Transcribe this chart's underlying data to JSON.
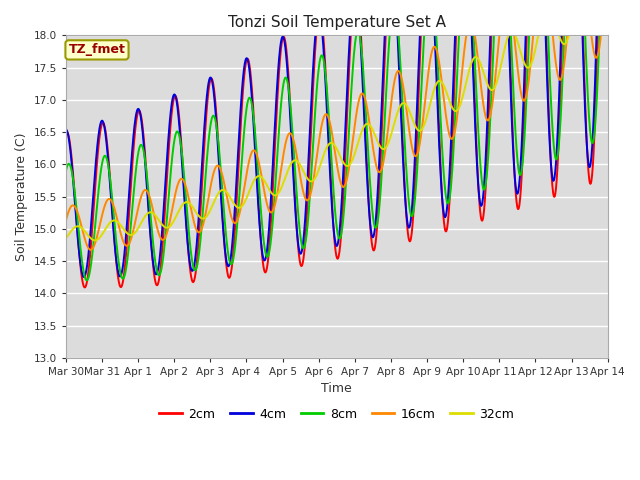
{
  "title": "Tonzi Soil Temperature Set A",
  "xlabel": "Time",
  "ylabel": "Soil Temperature (C)",
  "ylim": [
    13.0,
    18.0
  ],
  "yticks": [
    13.0,
    13.5,
    14.0,
    14.5,
    15.0,
    15.5,
    16.0,
    16.5,
    17.0,
    17.5,
    18.0
  ],
  "bg_color": "#dcdcdc",
  "series_colors": [
    "#ff0000",
    "#0000dd",
    "#00cc00",
    "#ff8800",
    "#dddd00"
  ],
  "series_labels": [
    "2cm",
    "4cm",
    "8cm",
    "16cm",
    "32cm"
  ],
  "annotation_label": "TZ_fmet",
  "annotation_bg": "#ffffcc",
  "annotation_border": "#999900",
  "annotation_text_color": "#990000",
  "xtick_labels": [
    "Mar 30",
    "Mar 31",
    "Apr 1",
    "Apr 2",
    "Apr 3",
    "Apr 4",
    "Apr 5",
    "Apr 6",
    "Apr 7",
    "Apr 8",
    "Apr 9",
    "Apr 10",
    "Apr 11",
    "Apr 12",
    "Apr 13",
    "Apr 14"
  ]
}
